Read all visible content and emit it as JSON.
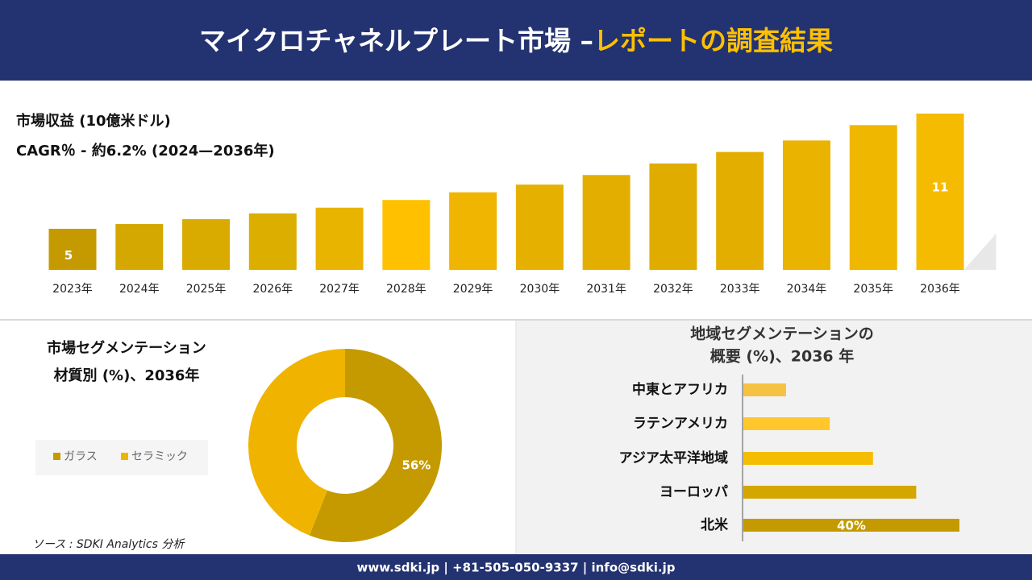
{
  "header": {
    "title": "マイクロチャネルプレート市場 –",
    "title_highlight": "レポートの調査結果"
  },
  "chart_data": [
    {
      "type": "bar",
      "orientation": "vertical",
      "title": "市場収益 (10億米ドル)",
      "subtitle": "CAGR％ - 約6.2% (2024—2036年)",
      "categories": [
        "2023年",
        "2024年",
        "2025年",
        "2026年",
        "2027年",
        "2028年",
        "2029年",
        "2030年",
        "2031年",
        "2032年",
        "2033年",
        "2034年",
        "2035年",
        "2036年"
      ],
      "values": [
        5,
        5.25,
        5.5,
        5.8,
        6.1,
        6.5,
        6.9,
        7.3,
        7.8,
        8.4,
        9.0,
        9.6,
        10.4,
        11
      ],
      "value_labels": [
        "5",
        null,
        null,
        null,
        null,
        null,
        null,
        null,
        null,
        null,
        null,
        null,
        null,
        "11"
      ],
      "colors": [
        "#c49a00",
        "#d4a800",
        "#d9ab00",
        "#dcae00",
        "#e8b400",
        "#ffc000",
        "#f0b500",
        "#e6b000",
        "#e3ae00",
        "#e0ac00",
        "#e3ae00",
        "#eab300",
        "#f0b700",
        "#f5bb00"
      ]
    },
    {
      "type": "pie",
      "donut": true,
      "title": [
        "市場セグメンテーション",
        "材質別 (%)、2036年"
      ],
      "categories": [
        "ガラス",
        "セラミック"
      ],
      "values": [
        56,
        44
      ],
      "value_labels": [
        "56%",
        null
      ],
      "colors": [
        "#c49a00",
        "#f0b400"
      ]
    },
    {
      "type": "bar",
      "orientation": "horizontal",
      "title": [
        "地域セグメンテーションの",
        "概要 (%)、2036 年"
      ],
      "categories": [
        "中東とアフリカ",
        "ラテンアメリカ",
        "アジア太平洋地域",
        "ヨーロッパ",
        "北米"
      ],
      "values": [
        7.9,
        16,
        24,
        32,
        40
      ],
      "value_labels": [
        null,
        null,
        null,
        null,
        "40%"
      ],
      "colors": [
        "#f5c242",
        "#ffc72c",
        "#f5bd00",
        "#d4a600",
        "#c49a00"
      ]
    }
  ],
  "source": "ソース : SDKI Analytics 分析",
  "footer": "www.sdki.jp | +81-505-050-9337 | info@sdki.jp"
}
